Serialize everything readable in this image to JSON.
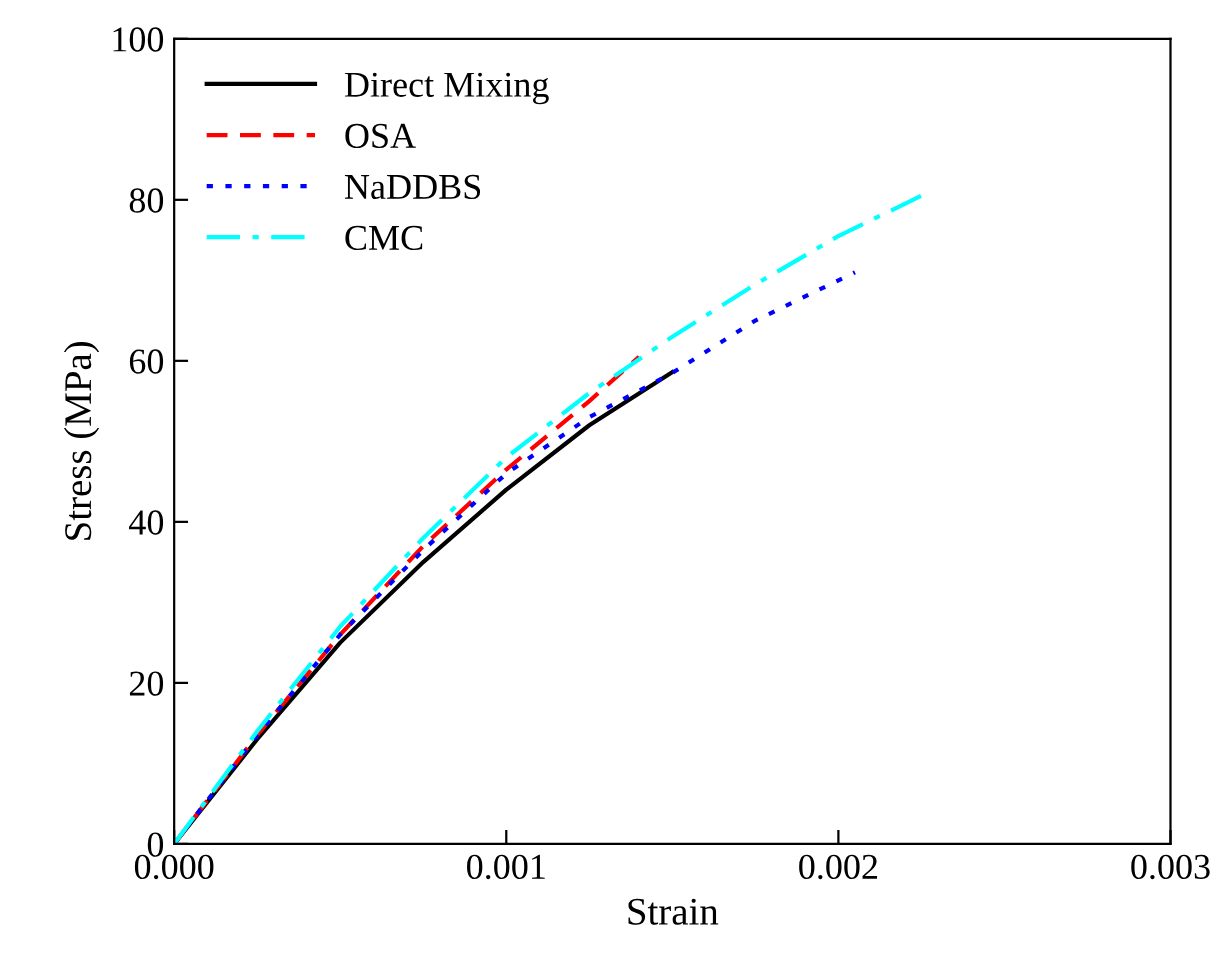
{
  "chart_data": {
    "type": "line",
    "xlabel": "Strain",
    "ylabel": "Stress (MPa)",
    "xlim": [
      0,
      0.003
    ],
    "ylim": [
      0,
      100
    ],
    "xticks": [
      {
        "value": 0,
        "label": "0.000"
      },
      {
        "value": 0.001,
        "label": "0.001"
      },
      {
        "value": 0.002,
        "label": "0.002"
      },
      {
        "value": 0.003,
        "label": "0.003"
      }
    ],
    "yticks": [
      0,
      20,
      40,
      60,
      80,
      100
    ],
    "grid": false,
    "legend": "top left",
    "marker": "none",
    "series": [
      {
        "name": "Direct Mixing",
        "color": "#000000",
        "line_style": "solid",
        "x": [
          0,
          0.00025,
          0.0005,
          0.00075,
          0.001,
          0.00125,
          0.0015
        ],
        "values": [
          0,
          13,
          25,
          35,
          44,
          52,
          58.6
        ]
      },
      {
        "name": "OSA",
        "color": "#ff0000",
        "line_style": "dashed",
        "x": [
          0,
          0.00025,
          0.0005,
          0.00075,
          0.001,
          0.00125,
          0.0014
        ],
        "values": [
          0,
          13.5,
          26,
          37,
          46.5,
          55,
          60.5
        ]
      },
      {
        "name": "NaDDBS",
        "color": "#0000ff",
        "line_style": "dotted",
        "x": [
          0,
          0.00025,
          0.0005,
          0.00075,
          0.001,
          0.00125,
          0.0015,
          0.00175,
          0.00205
        ],
        "values": [
          0,
          13.5,
          26,
          36.5,
          46,
          53,
          58.5,
          65,
          71
        ]
      },
      {
        "name": "CMC",
        "color": "#00ffff",
        "line_style": "dashdot",
        "x": [
          0,
          0.00025,
          0.0005,
          0.00075,
          0.001,
          0.00125,
          0.0015,
          0.00175,
          0.002,
          0.00225
        ],
        "values": [
          0,
          14,
          27,
          38,
          48,
          56,
          63,
          69.5,
          75.5,
          80.5
        ]
      }
    ]
  }
}
